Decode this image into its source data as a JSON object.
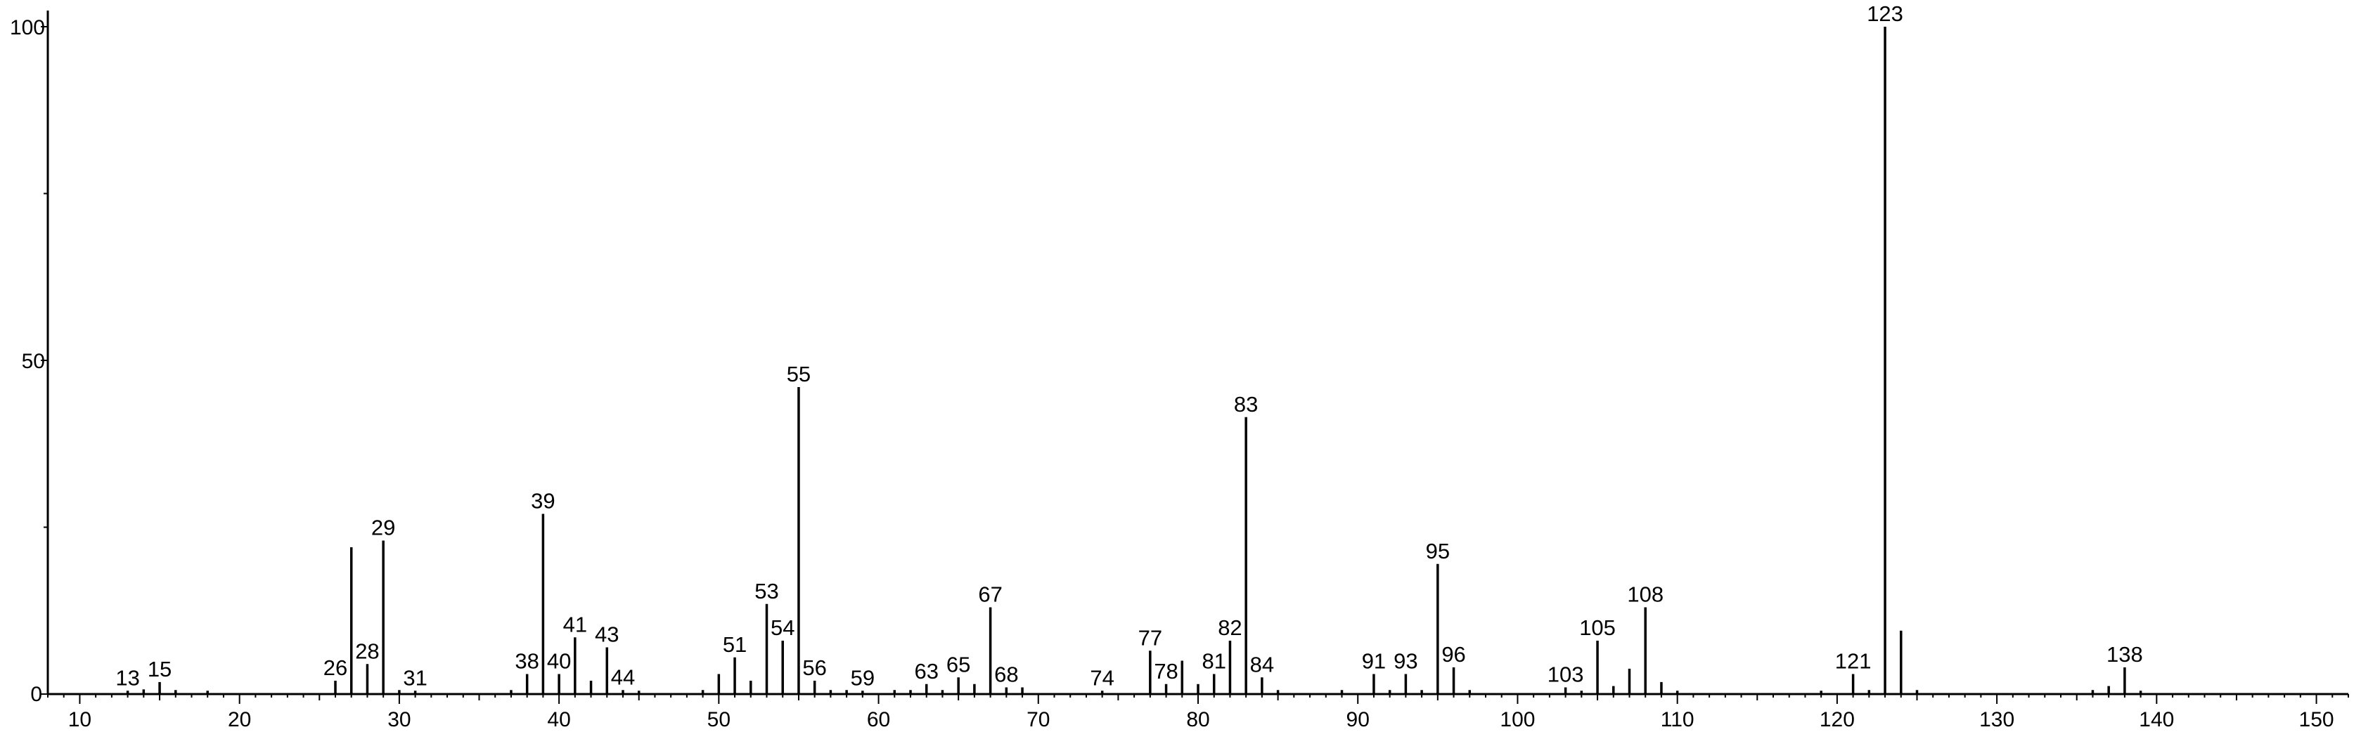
{
  "chart_data": {
    "type": "bar",
    "title": "",
    "xlabel": "",
    "ylabel": "",
    "xlim": [
      8,
      152
    ],
    "ylim": [
      0,
      100
    ],
    "x_ticks": [
      10,
      20,
      30,
      40,
      50,
      60,
      70,
      80,
      90,
      100,
      110,
      120,
      130,
      140,
      150
    ],
    "y_ticks": [
      0,
      50,
      100
    ],
    "grid": false,
    "legend": "none",
    "peaks": [
      {
        "x": 13,
        "y": 0.5,
        "label": "13"
      },
      {
        "x": 14,
        "y": 0.7,
        "label": ""
      },
      {
        "x": 15,
        "y": 1.8,
        "label": "15"
      },
      {
        "x": 16,
        "y": 0.6,
        "label": ""
      },
      {
        "x": 18,
        "y": 0.5,
        "label": ""
      },
      {
        "x": 26,
        "y": 2.0,
        "label": "26"
      },
      {
        "x": 27,
        "y": 22.0,
        "label": ""
      },
      {
        "x": 28,
        "y": 4.5,
        "label": "28"
      },
      {
        "x": 29,
        "y": 23.0,
        "label": "29"
      },
      {
        "x": 30,
        "y": 0.6,
        "label": ""
      },
      {
        "x": 31,
        "y": 0.5,
        "label": "31"
      },
      {
        "x": 37,
        "y": 0.6,
        "label": ""
      },
      {
        "x": 38,
        "y": 3.0,
        "label": "38"
      },
      {
        "x": 39,
        "y": 27.0,
        "label": "39"
      },
      {
        "x": 40,
        "y": 3.0,
        "label": "40"
      },
      {
        "x": 41,
        "y": 8.5,
        "label": "41"
      },
      {
        "x": 42,
        "y": 2.0,
        "label": ""
      },
      {
        "x": 43,
        "y": 7.0,
        "label": "43"
      },
      {
        "x": 44,
        "y": 0.6,
        "label": "44"
      },
      {
        "x": 45,
        "y": 0.5,
        "label": ""
      },
      {
        "x": 49,
        "y": 0.6,
        "label": ""
      },
      {
        "x": 50,
        "y": 3.0,
        "label": ""
      },
      {
        "x": 51,
        "y": 5.5,
        "label": "51"
      },
      {
        "x": 52,
        "y": 2.0,
        "label": ""
      },
      {
        "x": 53,
        "y": 13.5,
        "label": "53"
      },
      {
        "x": 54,
        "y": 8.0,
        "label": "54"
      },
      {
        "x": 55,
        "y": 46.0,
        "label": "55"
      },
      {
        "x": 56,
        "y": 2.0,
        "label": "56"
      },
      {
        "x": 57,
        "y": 0.6,
        "label": ""
      },
      {
        "x": 58,
        "y": 0.6,
        "label": ""
      },
      {
        "x": 59,
        "y": 0.5,
        "label": "59"
      },
      {
        "x": 61,
        "y": 0.6,
        "label": ""
      },
      {
        "x": 62,
        "y": 0.6,
        "label": ""
      },
      {
        "x": 63,
        "y": 1.5,
        "label": "63"
      },
      {
        "x": 64,
        "y": 0.6,
        "label": ""
      },
      {
        "x": 65,
        "y": 2.5,
        "label": "65"
      },
      {
        "x": 66,
        "y": 1.5,
        "label": ""
      },
      {
        "x": 67,
        "y": 13.0,
        "label": "67"
      },
      {
        "x": 68,
        "y": 1.0,
        "label": "68"
      },
      {
        "x": 69,
        "y": 1.0,
        "label": ""
      },
      {
        "x": 74,
        "y": 0.5,
        "label": "74"
      },
      {
        "x": 77,
        "y": 6.5,
        "label": "77"
      },
      {
        "x": 78,
        "y": 1.5,
        "label": "78"
      },
      {
        "x": 79,
        "y": 5.0,
        "label": ""
      },
      {
        "x": 80,
        "y": 1.5,
        "label": ""
      },
      {
        "x": 81,
        "y": 3.0,
        "label": "81"
      },
      {
        "x": 82,
        "y": 8.0,
        "label": "82"
      },
      {
        "x": 83,
        "y": 41.5,
        "label": "83"
      },
      {
        "x": 84,
        "y": 2.5,
        "label": "84"
      },
      {
        "x": 85,
        "y": 0.6,
        "label": ""
      },
      {
        "x": 89,
        "y": 0.6,
        "label": ""
      },
      {
        "x": 91,
        "y": 3.0,
        "label": "91"
      },
      {
        "x": 92,
        "y": 0.6,
        "label": ""
      },
      {
        "x": 93,
        "y": 3.0,
        "label": "93"
      },
      {
        "x": 94,
        "y": 0.6,
        "label": ""
      },
      {
        "x": 95,
        "y": 19.5,
        "label": "95"
      },
      {
        "x": 96,
        "y": 4.0,
        "label": "96"
      },
      {
        "x": 97,
        "y": 0.6,
        "label": ""
      },
      {
        "x": 103,
        "y": 1.0,
        "label": "103"
      },
      {
        "x": 104,
        "y": 0.5,
        "label": ""
      },
      {
        "x": 105,
        "y": 8.0,
        "label": "105"
      },
      {
        "x": 106,
        "y": 1.2,
        "label": ""
      },
      {
        "x": 107,
        "y": 3.8,
        "label": ""
      },
      {
        "x": 108,
        "y": 13.0,
        "label": "108"
      },
      {
        "x": 109,
        "y": 1.8,
        "label": ""
      },
      {
        "x": 110,
        "y": 0.5,
        "label": ""
      },
      {
        "x": 119,
        "y": 0.5,
        "label": ""
      },
      {
        "x": 121,
        "y": 3.0,
        "label": "121"
      },
      {
        "x": 122,
        "y": 0.6,
        "label": ""
      },
      {
        "x": 123,
        "y": 100,
        "label": "123"
      },
      {
        "x": 124,
        "y": 9.5,
        "label": ""
      },
      {
        "x": 125,
        "y": 0.6,
        "label": ""
      },
      {
        "x": 136,
        "y": 0.6,
        "label": ""
      },
      {
        "x": 137,
        "y": 1.2,
        "label": ""
      },
      {
        "x": 138,
        "y": 4.0,
        "label": "138"
      },
      {
        "x": 139,
        "y": 0.5,
        "label": ""
      }
    ]
  }
}
